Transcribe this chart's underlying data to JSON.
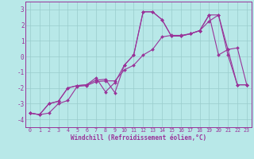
{
  "xlabel": "Windchill (Refroidissement éolien,°C)",
  "x": [
    0,
    1,
    2,
    3,
    4,
    5,
    6,
    7,
    8,
    9,
    10,
    11,
    12,
    13,
    14,
    15,
    16,
    17,
    18,
    19,
    20,
    21,
    22,
    23
  ],
  "line1": [
    -3.6,
    -3.7,
    -3.6,
    -3.0,
    -2.8,
    -1.9,
    -1.85,
    -1.6,
    -1.55,
    -1.55,
    -0.85,
    -0.55,
    0.1,
    0.45,
    1.25,
    1.35,
    1.35,
    1.45,
    1.65,
    2.25,
    2.65,
    0.1,
    -1.8,
    -1.8
  ],
  "line2": [
    -3.6,
    -3.7,
    -3.0,
    -2.85,
    -2.0,
    -1.85,
    -1.8,
    -1.35,
    -2.25,
    -1.65,
    -0.55,
    0.1,
    2.85,
    2.85,
    2.35,
    1.3,
    1.3,
    1.45,
    1.65,
    2.65,
    0.1,
    0.45,
    -1.8,
    -1.8
  ],
  "line3": [
    -3.6,
    -3.7,
    -3.0,
    -2.85,
    -2.0,
    -1.85,
    -1.8,
    -1.5,
    -1.45,
    -2.3,
    -0.55,
    0.1,
    2.85,
    2.85,
    2.35,
    1.3,
    1.3,
    1.45,
    1.65,
    2.65,
    2.65,
    0.45,
    0.55,
    -1.8
  ],
  "line_color": "#993399",
  "bg_color": "#b8e8e8",
  "grid_color": "#99cccc",
  "ylim": [
    -4.5,
    3.5
  ],
  "xlim": [
    -0.5,
    23.5
  ],
  "yticks": [
    -4,
    -3,
    -2,
    -1,
    0,
    1,
    2,
    3
  ],
  "xticks": [
    0,
    1,
    2,
    3,
    4,
    5,
    6,
    7,
    8,
    9,
    10,
    11,
    12,
    13,
    14,
    15,
    16,
    17,
    18,
    19,
    20,
    21,
    22,
    23
  ]
}
